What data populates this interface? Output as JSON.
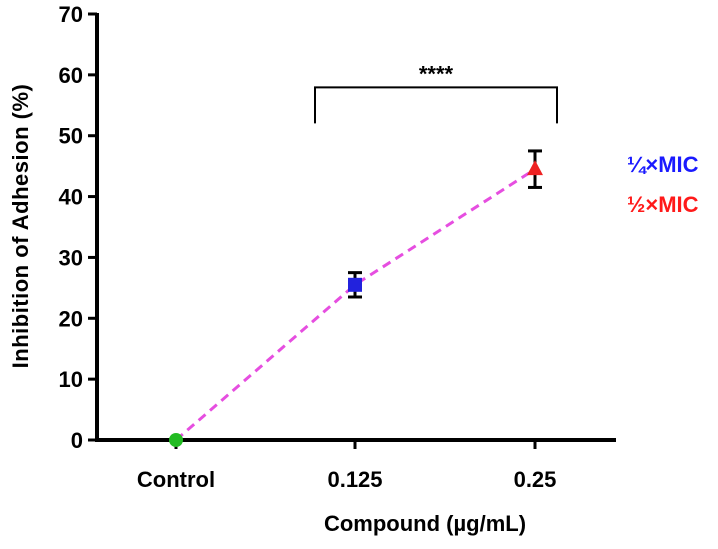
{
  "chart_data": {
    "type": "scatter",
    "title": "",
    "xlabel": "Compound (µg/mL)",
    "ylabel": "Inhibition of Adhesion (%)",
    "categories": [
      "Control",
      "0.125",
      "0.25"
    ],
    "ylim": [
      0,
      70
    ],
    "yticks": [
      0,
      10,
      20,
      30,
      40,
      50,
      60,
      70
    ],
    "points": [
      {
        "category": "Control",
        "value": 0,
        "error": 0,
        "marker": "circle",
        "color": "#22bb22"
      },
      {
        "category": "0.125",
        "value": 25.5,
        "error": 2.0,
        "marker": "square",
        "color": "#2222dd"
      },
      {
        "category": "0.25",
        "value": 44.5,
        "error": 3.0,
        "marker": "triangle",
        "color": "#ee2222"
      }
    ],
    "trend_line": {
      "style": "dashed",
      "color": "#e64ee0"
    },
    "legend": [
      {
        "label": "¼×MIC",
        "color": "#1a1aff"
      },
      {
        "label": "½×MIC",
        "color": "#ff1a1a"
      }
    ],
    "annotations": [
      {
        "text": "****",
        "from": "0.125",
        "to": "0.25",
        "bracket_value": 54
      }
    ],
    "grid": false
  }
}
